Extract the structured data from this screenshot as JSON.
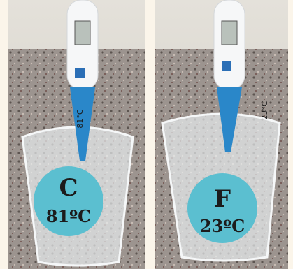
{
  "panels": [
    {
      "letter": "C",
      "temperature": "81ºC",
      "thermometer_reading": "81°C"
    },
    {
      "letter": "F",
      "temperature": "23ºC",
      "thermometer_reading": "23°C"
    }
  ]
}
